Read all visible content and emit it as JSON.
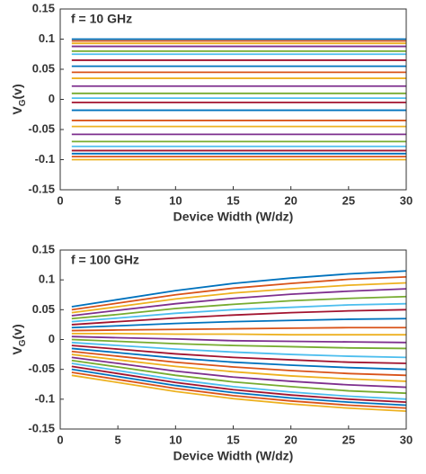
{
  "chart_data": [
    {
      "type": "line",
      "annotation": "f = 10 GHz",
      "xlabel": "Device Width (W/dz)",
      "ylabel": [
        "V",
        "G",
        "(v)"
      ],
      "x": [
        1,
        5,
        10,
        15,
        20,
        25,
        30
      ],
      "xlim": [
        0,
        30
      ],
      "ylim": [
        -0.15,
        0.15
      ],
      "xticks": [
        0,
        5,
        10,
        15,
        20,
        25,
        30
      ],
      "yticks": [
        -0.15,
        -0.1,
        -0.05,
        0,
        0.05,
        0.1,
        0.15
      ],
      "series": [
        {
          "color": "#0072BD",
          "values": [
            0.1,
            0.1,
            0.1,
            0.1,
            0.1,
            0.1,
            0.1
          ]
        },
        {
          "color": "#D95319",
          "values": [
            0.097,
            0.097,
            0.097,
            0.097,
            0.097,
            0.097,
            0.097
          ]
        },
        {
          "color": "#EDB120",
          "values": [
            0.093,
            0.093,
            0.093,
            0.093,
            0.093,
            0.093,
            0.093
          ]
        },
        {
          "color": "#7E2F8E",
          "values": [
            0.088,
            0.088,
            0.088,
            0.088,
            0.088,
            0.088,
            0.088
          ]
        },
        {
          "color": "#77AC30",
          "values": [
            0.08,
            0.08,
            0.08,
            0.08,
            0.08,
            0.08,
            0.08
          ]
        },
        {
          "color": "#4DBEEE",
          "values": [
            0.075,
            0.075,
            0.075,
            0.075,
            0.075,
            0.075,
            0.075
          ]
        },
        {
          "color": "#A2142F",
          "values": [
            0.065,
            0.065,
            0.065,
            0.065,
            0.065,
            0.065,
            0.065
          ]
        },
        {
          "color": "#0072BD",
          "values": [
            0.055,
            0.055,
            0.055,
            0.055,
            0.055,
            0.055,
            0.055
          ]
        },
        {
          "color": "#D95319",
          "values": [
            0.045,
            0.045,
            0.045,
            0.045,
            0.045,
            0.045,
            0.045
          ]
        },
        {
          "color": "#EDB120",
          "values": [
            0.035,
            0.035,
            0.035,
            0.035,
            0.035,
            0.035,
            0.035
          ]
        },
        {
          "color": "#7E2F8E",
          "values": [
            0.022,
            0.022,
            0.022,
            0.022,
            0.022,
            0.022,
            0.022
          ]
        },
        {
          "color": "#77AC30",
          "values": [
            0.01,
            0.01,
            0.01,
            0.01,
            0.01,
            0.01,
            0.01
          ]
        },
        {
          "color": "#4DBEEE",
          "values": [
            0.002,
            0.002,
            0.002,
            0.002,
            0.002,
            0.002,
            0.002
          ]
        },
        {
          "color": "#A2142F",
          "values": [
            -0.005,
            -0.005,
            -0.005,
            -0.005,
            -0.005,
            -0.005,
            -0.005
          ]
        },
        {
          "color": "#0072BD",
          "values": [
            -0.018,
            -0.018,
            -0.018,
            -0.018,
            -0.018,
            -0.018,
            -0.018
          ]
        },
        {
          "color": "#D95319",
          "values": [
            -0.035,
            -0.035,
            -0.035,
            -0.035,
            -0.035,
            -0.035,
            -0.035
          ]
        },
        {
          "color": "#EDB120",
          "values": [
            -0.045,
            -0.045,
            -0.045,
            -0.045,
            -0.045,
            -0.045,
            -0.045
          ]
        },
        {
          "color": "#7E2F8E",
          "values": [
            -0.058,
            -0.058,
            -0.058,
            -0.058,
            -0.058,
            -0.058,
            -0.058
          ]
        },
        {
          "color": "#77AC30",
          "values": [
            -0.07,
            -0.07,
            -0.07,
            -0.07,
            -0.07,
            -0.07,
            -0.07
          ]
        },
        {
          "color": "#4DBEEE",
          "values": [
            -0.078,
            -0.078,
            -0.078,
            -0.078,
            -0.078,
            -0.078,
            -0.078
          ]
        },
        {
          "color": "#A2142F",
          "values": [
            -0.085,
            -0.085,
            -0.085,
            -0.085,
            -0.085,
            -0.085,
            -0.085
          ]
        },
        {
          "color": "#0072BD",
          "values": [
            -0.09,
            -0.09,
            -0.09,
            -0.09,
            -0.09,
            -0.09,
            -0.09
          ]
        },
        {
          "color": "#D95319",
          "values": [
            -0.095,
            -0.095,
            -0.095,
            -0.095,
            -0.095,
            -0.095,
            -0.095
          ]
        },
        {
          "color": "#EDB120",
          "values": [
            -0.1,
            -0.1,
            -0.1,
            -0.1,
            -0.1,
            -0.1,
            -0.1
          ]
        }
      ]
    },
    {
      "type": "line",
      "annotation": "f = 100 GHz",
      "xlabel": "Device Width (W/dz)",
      "ylabel": [
        "V",
        "G",
        "(v)"
      ],
      "x": [
        1,
        5,
        10,
        15,
        20,
        25,
        30
      ],
      "xlim": [
        0,
        30
      ],
      "ylim": [
        -0.15,
        0.15
      ],
      "xticks": [
        0,
        5,
        10,
        15,
        20,
        25,
        30
      ],
      "yticks": [
        -0.15,
        -0.1,
        -0.05,
        0,
        0.05,
        0.1,
        0.15
      ],
      "series": [
        {
          "color": "#0072BD",
          "values": [
            0.055,
            0.067,
            0.082,
            0.094,
            0.103,
            0.11,
            0.115
          ]
        },
        {
          "color": "#D95319",
          "values": [
            0.05,
            0.061,
            0.075,
            0.086,
            0.094,
            0.101,
            0.105
          ]
        },
        {
          "color": "#EDB120",
          "values": [
            0.045,
            0.055,
            0.068,
            0.078,
            0.085,
            0.091,
            0.095
          ]
        },
        {
          "color": "#7E2F8E",
          "values": [
            0.04,
            0.049,
            0.06,
            0.069,
            0.076,
            0.081,
            0.085
          ]
        },
        {
          "color": "#77AC30",
          "values": [
            0.035,
            0.042,
            0.052,
            0.059,
            0.065,
            0.069,
            0.072
          ]
        },
        {
          "color": "#4DBEEE",
          "values": [
            0.03,
            0.036,
            0.044,
            0.05,
            0.054,
            0.058,
            0.06
          ]
        },
        {
          "color": "#A2142F",
          "values": [
            0.025,
            0.03,
            0.036,
            0.041,
            0.045,
            0.048,
            0.05
          ]
        },
        {
          "color": "#0072BD",
          "values": [
            0.02,
            0.023,
            0.027,
            0.03,
            0.032,
            0.034,
            0.035
          ]
        },
        {
          "color": "#D95319",
          "values": [
            0.015,
            0.016,
            0.017,
            0.018,
            0.019,
            0.02,
            0.02
          ]
        },
        {
          "color": "#EDB120",
          "values": [
            0.01,
            0.01,
            0.009,
            0.009,
            0.008,
            0.008,
            0.008
          ]
        },
        {
          "color": "#7E2F8E",
          "values": [
            0.005,
            0.003,
            0.001,
            -0.002,
            -0.003,
            -0.004,
            -0.005
          ]
        },
        {
          "color": "#77AC30",
          "values": [
            0,
            -0.003,
            -0.007,
            -0.01,
            -0.012,
            -0.014,
            -0.015
          ]
        },
        {
          "color": "#4DBEEE",
          "values": [
            -0.005,
            -0.01,
            -0.016,
            -0.021,
            -0.025,
            -0.028,
            -0.03
          ]
        },
        {
          "color": "#A2142F",
          "values": [
            -0.01,
            -0.016,
            -0.024,
            -0.03,
            -0.034,
            -0.038,
            -0.04
          ]
        },
        {
          "color": "#0072BD",
          "values": [
            -0.015,
            -0.022,
            -0.031,
            -0.038,
            -0.043,
            -0.047,
            -0.05
          ]
        },
        {
          "color": "#D95319",
          "values": [
            -0.02,
            -0.028,
            -0.038,
            -0.046,
            -0.052,
            -0.057,
            -0.06
          ]
        },
        {
          "color": "#EDB120",
          "values": [
            -0.025,
            -0.034,
            -0.045,
            -0.054,
            -0.061,
            -0.066,
            -0.07
          ]
        },
        {
          "color": "#7E2F8E",
          "values": [
            -0.03,
            -0.04,
            -0.053,
            -0.063,
            -0.07,
            -0.076,
            -0.08
          ]
        },
        {
          "color": "#77AC30",
          "values": [
            -0.035,
            -0.046,
            -0.06,
            -0.071,
            -0.079,
            -0.086,
            -0.09
          ]
        },
        {
          "color": "#4DBEEE",
          "values": [
            -0.04,
            -0.052,
            -0.067,
            -0.079,
            -0.088,
            -0.095,
            -0.1
          ]
        },
        {
          "color": "#A2142F",
          "values": [
            -0.045,
            -0.057,
            -0.072,
            -0.084,
            -0.093,
            -0.1,
            -0.105
          ]
        },
        {
          "color": "#0072BD",
          "values": [
            -0.05,
            -0.062,
            -0.077,
            -0.089,
            -0.098,
            -0.105,
            -0.11
          ]
        },
        {
          "color": "#D95319",
          "values": [
            -0.055,
            -0.067,
            -0.082,
            -0.094,
            -0.103,
            -0.11,
            -0.115
          ]
        },
        {
          "color": "#EDB120",
          "values": [
            -0.06,
            -0.072,
            -0.087,
            -0.099,
            -0.108,
            -0.115,
            -0.12
          ]
        }
      ]
    }
  ]
}
